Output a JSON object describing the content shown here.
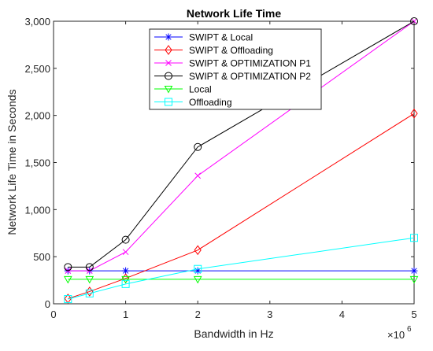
{
  "chart_data": {
    "type": "line",
    "title": "Network Life Time",
    "xlabel": "Bandwidth in Hz",
    "ylabel": "Network Life Time in Seconds",
    "x_multiplier_label": "×10",
    "x_multiplier_exp": "6",
    "xlim": [
      0,
      5
    ],
    "ylim": [
      0,
      3000
    ],
    "xticks": [
      0,
      1,
      2,
      3,
      4,
      5
    ],
    "yticks": [
      0,
      500,
      1000,
      1500,
      2000,
      2500,
      3000
    ],
    "ytick_labels": [
      "0",
      "500",
      "1,000",
      "1,500",
      "2,000",
      "2,500",
      "3,000"
    ],
    "grid": false,
    "legend_position": "top-center",
    "x": [
      0.2,
      0.5,
      1,
      2,
      5
    ],
    "series": [
      {
        "name": "SWIPT & Local",
        "color": "#0000ff",
        "marker": "asterisk",
        "values": [
          350,
          350,
          350,
          350,
          350
        ]
      },
      {
        "name": "SWIPT & Offloading",
        "color": "#ff0000",
        "marker": "diamond",
        "values": [
          55,
          130,
          270,
          570,
          2020
        ]
      },
      {
        "name": "SWIPT & OPTIMIZATION P1",
        "color": "#ff00ff",
        "marker": "x",
        "values": [
          350,
          350,
          550,
          1360,
          3000
        ]
      },
      {
        "name": "SWIPT & OPTIMIZATION P2",
        "color": "#000000",
        "marker": "circle",
        "values": [
          390,
          390,
          680,
          1665,
          3000
        ]
      },
      {
        "name": "Local",
        "color": "#00ff00",
        "marker": "triangle-down",
        "values": [
          260,
          260,
          260,
          260,
          260
        ]
      },
      {
        "name": "Offloading",
        "color": "#00ffff",
        "marker": "square",
        "values": [
          50,
          110,
          210,
          370,
          700
        ]
      }
    ]
  }
}
